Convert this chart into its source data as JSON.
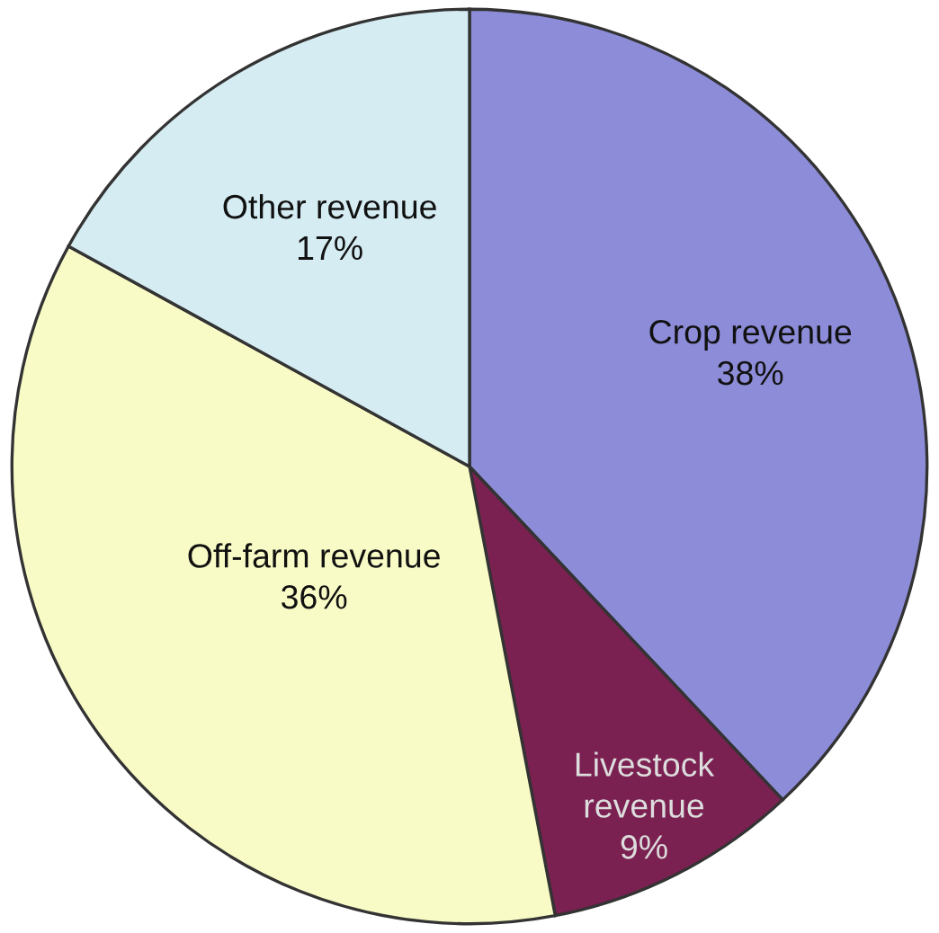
{
  "chart_data": {
    "type": "pie",
    "categories": [
      "Crop revenue",
      "Livestock revenue",
      "Off-farm revenue",
      "Other revenue"
    ],
    "values": [
      38,
      9,
      36,
      17
    ],
    "value_labels": [
      "38%",
      "9%",
      "36%",
      "17%"
    ],
    "colors": [
      "#8c8cd8",
      "#7b2152",
      "#f9fbc6",
      "#d5ecf3"
    ]
  }
}
